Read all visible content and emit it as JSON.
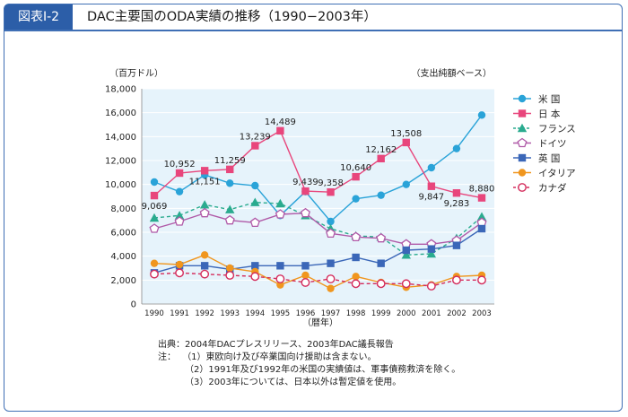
{
  "figure": {
    "label": "図表Ⅰ-2",
    "title": "DAC主要国のODA実績の推移（1990−2003年）"
  },
  "chart_data": {
    "type": "line",
    "title": "DAC主要国のODA実績の推移（1990−2003年）",
    "ylabel": "（百万ドル）",
    "xlabel": "（暦年）",
    "note_right": "（支出純額ベース）",
    "ylim": [
      0,
      18000
    ],
    "yticks": [
      0,
      2000,
      4000,
      6000,
      8000,
      10000,
      12000,
      14000,
      16000,
      18000
    ],
    "ytick_labels": [
      "0",
      "2,000",
      "4,000",
      "6,000",
      "8,000",
      "10,000",
      "12,000",
      "14,000",
      "16,000",
      "18,000"
    ],
    "categories": [
      "1990",
      "1991",
      "1992",
      "1993",
      "1994",
      "1995",
      "1996",
      "1997",
      "1998",
      "1999",
      "2000",
      "2001",
      "2002",
      "2003"
    ],
    "grid": true,
    "legend_position": "right",
    "series": [
      {
        "name": "米 国",
        "color": "#2aa3d8",
        "marker": "circle",
        "dash": false,
        "values": [
          10200,
          9400,
          10800,
          10100,
          9900,
          7400,
          9400,
          6900,
          8800,
          9100,
          10000,
          11400,
          13000,
          15800
        ]
      },
      {
        "name": "日 本",
        "color": "#e8467c",
        "marker": "square",
        "dash": false,
        "values": [
          9069,
          10952,
          11151,
          11259,
          13239,
          14489,
          9439,
          9358,
          10640,
          12162,
          13508,
          9847,
          9283,
          8880
        ]
      },
      {
        "name": "フランス",
        "color": "#2aab8f",
        "marker": "triangle",
        "dash": true,
        "values": [
          7200,
          7400,
          8300,
          7900,
          8500,
          8400,
          7400,
          6300,
          5700,
          5600,
          4100,
          4200,
          5500,
          7300
        ]
      },
      {
        "name": "ドイツ",
        "color": "#b05aa8",
        "marker": "pentagon",
        "dash": false,
        "values": [
          6300,
          6900,
          7600,
          7000,
          6800,
          7500,
          7600,
          5900,
          5600,
          5500,
          5000,
          5000,
          5300,
          6800
        ]
      },
      {
        "name": "英 国",
        "color": "#3b67b8",
        "marker": "square",
        "dash": false,
        "values": [
          2600,
          3200,
          3200,
          2900,
          3200,
          3200,
          3200,
          3400,
          3900,
          3400,
          4500,
          4600,
          4900,
          6300
        ]
      },
      {
        "name": "イタリア",
        "color": "#f0961e",
        "marker": "circle",
        "dash": false,
        "values": [
          3400,
          3300,
          4100,
          3000,
          2700,
          1600,
          2400,
          1300,
          2300,
          1800,
          1400,
          1600,
          2300,
          2400
        ]
      },
      {
        "name": "カナダ",
        "color": "#d42c5c",
        "marker": "circle-open",
        "dash": true,
        "values": [
          2500,
          2600,
          2500,
          2400,
          2300,
          2100,
          1800,
          2100,
          1700,
          1700,
          1700,
          1500,
          2000,
          2000
        ]
      }
    ],
    "annotations": [
      {
        "text": "9,069",
        "series": "日 本",
        "index": 0,
        "pos": "below"
      },
      {
        "text": "10,952",
        "series": "日 本",
        "index": 1,
        "pos": "above"
      },
      {
        "text": "11,151",
        "series": "日 本",
        "index": 2,
        "pos": "below"
      },
      {
        "text": "11,259",
        "series": "日 本",
        "index": 3,
        "pos": "above"
      },
      {
        "text": "13,239",
        "series": "日 本",
        "index": 4,
        "pos": "above"
      },
      {
        "text": "14,489",
        "series": "日 本",
        "index": 5,
        "pos": "above"
      },
      {
        "text": "9,439",
        "series": "日 本",
        "index": 6,
        "pos": "above"
      },
      {
        "text": "9,358",
        "series": "日 本",
        "index": 7,
        "pos": "above"
      },
      {
        "text": "10,640",
        "series": "日 本",
        "index": 8,
        "pos": "above"
      },
      {
        "text": "12,162",
        "series": "日 本",
        "index": 9,
        "pos": "above"
      },
      {
        "text": "13,508",
        "series": "日 本",
        "index": 10,
        "pos": "above"
      },
      {
        "text": "9,847",
        "series": "日 本",
        "index": 11,
        "pos": "below"
      },
      {
        "text": "9,283",
        "series": "日 本",
        "index": 12,
        "pos": "below"
      },
      {
        "text": "8,880",
        "series": "日 本",
        "index": 13,
        "pos": "above"
      }
    ]
  },
  "notes": {
    "source": "出典：2004年DACプレスリリース、2003年DAC議長報告",
    "label": "注：",
    "items": [
      "（1）東欧向け及び卒業国向け援助は含まない。",
      "（2）1991年及び1992年の米国の実績値は、軍事債務救済を除く。",
      "（3）2003年については、日本以外は暫定値を使用。"
    ]
  }
}
